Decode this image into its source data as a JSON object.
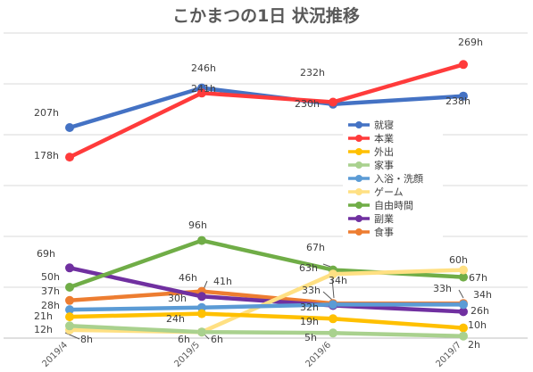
{
  "chart_data": {
    "type": "line",
    "title": "こかまつの1日 状況推移",
    "categories": [
      "2019/4",
      "2019/5",
      "2019/6",
      "2019/7"
    ],
    "ylim": [
      0,
      300
    ],
    "grid": true,
    "legend_position": "right",
    "series": [
      {
        "name": "就寝",
        "color": "#4472C4",
        "values": [
          207,
          246,
          230,
          238
        ]
      },
      {
        "name": "本業",
        "color": "#FF3B3B",
        "values": [
          178,
          241,
          232,
          269
        ]
      },
      {
        "name": "外出",
        "color": "#FFC000",
        "values": [
          21,
          24,
          19,
          10
        ]
      },
      {
        "name": "家事",
        "color": "#A9D18E",
        "values": [
          12,
          6,
          5,
          2
        ]
      },
      {
        "name": "入浴・洗顔",
        "color": "#5B9BD5",
        "values": [
          28,
          30,
          33,
          33
        ]
      },
      {
        "name": "ゲーム",
        "color": "#FFE083",
        "values": [
          8,
          6,
          63,
          67
        ]
      },
      {
        "name": "自由時間",
        "color": "#70AD47",
        "values": [
          50,
          96,
          67,
          60
        ]
      },
      {
        "name": "副業",
        "color": "#7030A0",
        "values": [
          69,
          41,
          32,
          26
        ]
      },
      {
        "name": "食事",
        "color": "#ED7D31",
        "values": [
          37,
          46,
          34,
          34
        ]
      }
    ],
    "data_labels": [
      {
        "text": "207h"
      },
      {
        "text": "246h"
      },
      {
        "text": "230h"
      },
      {
        "text": "238h"
      },
      {
        "text": "178h"
      },
      {
        "text": "241h"
      },
      {
        "text": "232h"
      },
      {
        "text": "269h"
      },
      {
        "text": "21h"
      },
      {
        "text": "24h"
      },
      {
        "text": "19h"
      },
      {
        "text": "10h"
      },
      {
        "text": "12h"
      },
      {
        "text": "6h"
      },
      {
        "text": "5h"
      },
      {
        "text": "2h"
      },
      {
        "text": "28h"
      },
      {
        "text": "30h"
      },
      {
        "text": "33h"
      },
      {
        "text": "33h"
      },
      {
        "text": "8h"
      },
      {
        "text": "6h"
      },
      {
        "text": "63h"
      },
      {
        "text": "67h"
      },
      {
        "text": "50h"
      },
      {
        "text": "96h"
      },
      {
        "text": "67h"
      },
      {
        "text": "60h"
      },
      {
        "text": "69h"
      },
      {
        "text": "41h"
      },
      {
        "text": "32h"
      },
      {
        "text": "26h"
      },
      {
        "text": "37h"
      },
      {
        "text": "46h"
      },
      {
        "text": "34h"
      },
      {
        "text": "34h"
      }
    ]
  }
}
